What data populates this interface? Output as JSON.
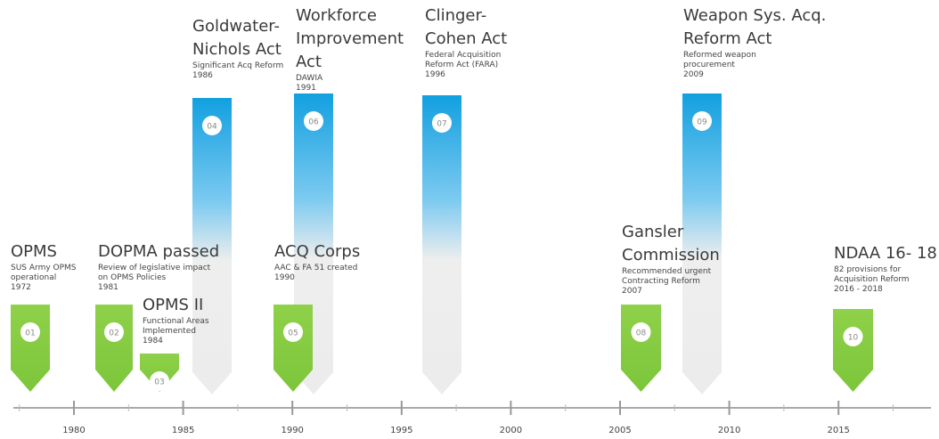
{
  "events": [
    {
      "number": "01",
      "title": "OPMS",
      "description": "SUS Army OPMS operational",
      "year": "1972"
    },
    {
      "number": "02",
      "title": "DOPMA passed",
      "description": "Review of legislative impact on OPMS Policies",
      "year": "1981"
    },
    {
      "number": "03",
      "title": "OPMS II",
      "description": "Functional Areas Implemented",
      "year": "1984"
    },
    {
      "number": "04",
      "title": "Goldwater-Nichols Act",
      "description": "Significant Acq Reform",
      "year": "1986"
    },
    {
      "number": "05",
      "title": "ACQ Corps",
      "description": "AAC & FA 51 created",
      "year": "1990"
    },
    {
      "number": "06",
      "title": "Workforce Improvement Act",
      "description": "DAWIA",
      "year": "1991"
    },
    {
      "number": "07",
      "title": "Clinger-Cohen Act",
      "description": "Federal Acquisition Reform Act (FARA)",
      "year": "1996"
    },
    {
      "number": "08",
      "title": "Gansler Commission",
      "description": "Recommended urgent Contracting Reform",
      "year": "2007"
    },
    {
      "number": "09",
      "title": "Weapon Sys. Acq. Reform Act",
      "description": "Reformed weapon procurement",
      "year": "2009"
    },
    {
      "number": "10",
      "title": "NDAA 16- 18",
      "description": "82 provisions for Acquisition Reform",
      "year": "2016 - 2018"
    }
  ],
  "axis": {
    "labels": [
      "1980",
      "1985",
      "1990",
      "1995",
      "2000",
      "2005",
      "2010",
      "2015"
    ]
  }
}
